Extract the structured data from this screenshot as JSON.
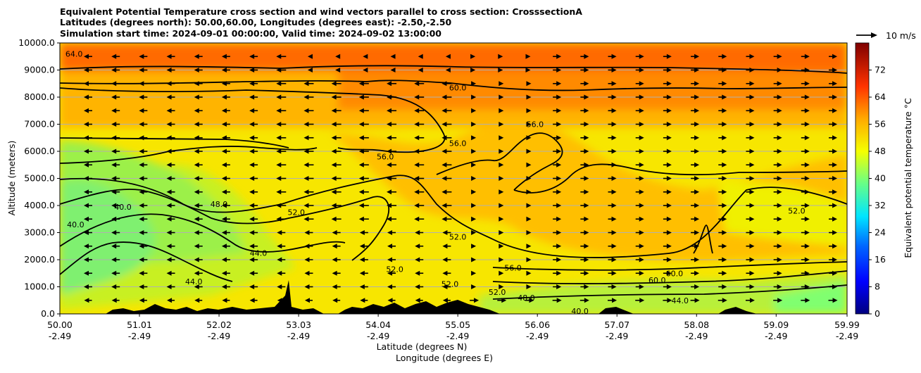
{
  "chart_data": {
    "type": "heatmap",
    "title_lines": [
      "Equivalent Potential Temperature cross section and wind vectors parallel to cross section: CrosssectionA",
      "Latitudes (degrees north): 50.00,60.00, Longitudes (degrees east): -2.50,-2.50",
      "Simulation start time: 2024-09-01 00:00:00, Valid time: 2024-09-02 13:00:00"
    ],
    "xlabel_line1": "Latitude (degrees N)",
    "xlabel_line2": "Longitude (degrees E)",
    "ylabel": "Altitude (meters)",
    "x_ticks": [
      {
        "lat": "50.00",
        "lon": "-2.49",
        "v": 50.0
      },
      {
        "lat": "51.01",
        "lon": "-2.49",
        "v": 51.01
      },
      {
        "lat": "52.02",
        "lon": "-2.49",
        "v": 52.02
      },
      {
        "lat": "53.03",
        "lon": "-2.49",
        "v": 53.03
      },
      {
        "lat": "54.04",
        "lon": "-2.49",
        "v": 54.04
      },
      {
        "lat": "55.05",
        "lon": "-2.49",
        "v": 55.05
      },
      {
        "lat": "56.06",
        "lon": "-2.49",
        "v": 56.06
      },
      {
        "lat": "57.07",
        "lon": "-2.49",
        "v": 57.07
      },
      {
        "lat": "58.08",
        "lon": "-2.49",
        "v": 58.08
      },
      {
        "lat": "59.09",
        "lon": "-2.49",
        "v": 59.09
      },
      {
        "lat": "59.99",
        "lon": "-2.49",
        "v": 59.99
      }
    ],
    "y_ticks": [
      "0.0",
      "1000.0",
      "2000.0",
      "3000.0",
      "4000.0",
      "5000.0",
      "6000.0",
      "7000.0",
      "8000.0",
      "9000.0",
      "10000.0"
    ],
    "xlim": [
      50.0,
      59.99
    ],
    "ylim": [
      0,
      10000
    ],
    "grid": "horizontal",
    "colorbar": {
      "label": "Equivalent potential temperature °C",
      "ticks": [
        "0",
        "8",
        "16",
        "24",
        "32",
        "40",
        "48",
        "56",
        "64",
        "72"
      ],
      "range": [
        0,
        80
      ]
    },
    "quiver_key": "10 m/s",
    "contour_levels": [
      40,
      44,
      48,
      52,
      56,
      60,
      64
    ],
    "contour_labels": [
      {
        "text": "64.0",
        "lat": 50.18,
        "alt": 9600
      },
      {
        "text": "60.0",
        "lat": 55.05,
        "alt": 8350
      },
      {
        "text": "56.0",
        "lat": 55.05,
        "alt": 6300
      },
      {
        "text": "56.0",
        "lat": 54.13,
        "alt": 5800
      },
      {
        "text": "56.0",
        "lat": 56.03,
        "alt": 7000
      },
      {
        "text": "52.0",
        "lat": 53.0,
        "alt": 3750
      },
      {
        "text": "52.0",
        "lat": 55.05,
        "alt": 2850
      },
      {
        "text": "52.0",
        "lat": 54.25,
        "alt": 1650
      },
      {
        "text": "52.0",
        "lat": 55.55,
        "alt": 800
      },
      {
        "text": "52.0",
        "lat": 54.95,
        "alt": 1100
      },
      {
        "text": "52.0",
        "lat": 59.35,
        "alt": 3800
      },
      {
        "text": "48.0",
        "lat": 52.02,
        "alt": 4050
      },
      {
        "text": "48.0",
        "lat": 55.92,
        "alt": 600
      },
      {
        "text": "44.0",
        "lat": 52.52,
        "alt": 2250
      },
      {
        "text": "44.0",
        "lat": 51.7,
        "alt": 1200
      },
      {
        "text": "44.0",
        "lat": 57.87,
        "alt": 500
      },
      {
        "text": "40.0",
        "lat": 50.8,
        "alt": 3950
      },
      {
        "text": "40.0",
        "lat": 50.2,
        "alt": 3300
      },
      {
        "text": "40.0",
        "lat": 56.6,
        "alt": 100
      },
      {
        "text": "60.0",
        "lat": 57.58,
        "alt": 1250
      },
      {
        "text": "60.0",
        "lat": 57.8,
        "alt": 1500
      },
      {
        "text": "56.0",
        "lat": 55.75,
        "alt": 1700
      }
    ]
  }
}
